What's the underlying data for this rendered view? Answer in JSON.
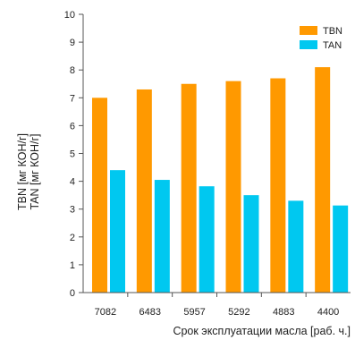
{
  "chart_data": {
    "type": "bar",
    "categories": [
      "7082",
      "6483",
      "5957",
      "5292",
      "4883",
      "4400"
    ],
    "series": [
      {
        "name": "TBN",
        "color": "#FF9900",
        "values": [
          7.0,
          7.3,
          7.5,
          7.6,
          7.7,
          8.1
        ]
      },
      {
        "name": "TAN",
        "color": "#00C8F0",
        "values": [
          4.4,
          4.05,
          3.82,
          3.5,
          3.3,
          3.13
        ]
      }
    ],
    "xlabel": "Срок эксплуатации масла [раб. ч.]",
    "ylabel": [
      "TBN [мг КОН/г]",
      "TAN [мг КОН/г]"
    ],
    "ylim": [
      0,
      10
    ],
    "yticks": [
      "0",
      "1",
      "2",
      "3",
      "4",
      "5",
      "6",
      "7",
      "8",
      "9",
      "10"
    ],
    "grid": false,
    "legend": "top-right"
  }
}
